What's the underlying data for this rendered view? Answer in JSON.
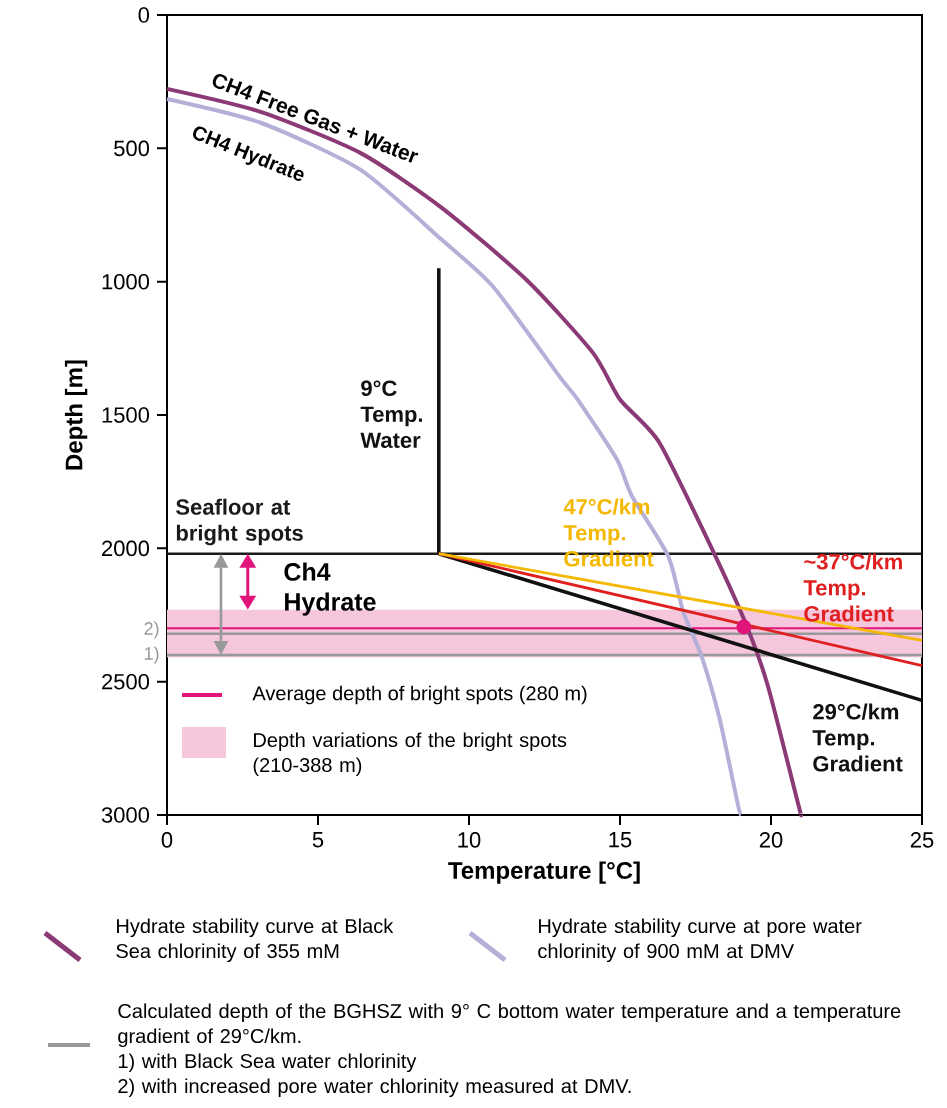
{
  "chart_data": {
    "type": "line",
    "xlabel": "Temperature [°C]",
    "ylabel": "Depth [m]",
    "xlim": [
      0,
      25
    ],
    "ylim": [
      3000,
      0
    ],
    "xticks": [
      0,
      5,
      10,
      15,
      20,
      25
    ],
    "yticks": [
      0,
      500,
      1000,
      1500,
      2000,
      2500,
      3000
    ],
    "series": [
      {
        "name": "Hydrate stability curve at Black Sea chlorinity of 355 mM",
        "color": "#8b3a75",
        "x": [
          0,
          3.1,
          6.4,
          9.1,
          11.9,
          14.1,
          15.0,
          16.3,
          18.1,
          19.2,
          19.9,
          20.9,
          21.0
        ],
        "values": [
          277,
          363,
          517,
          723,
          993,
          1266,
          1442,
          1603,
          2015,
          2292,
          2517,
          2959,
          3000
        ]
      },
      {
        "name": "Hydrate stability curve at pore water chlorinity of 900 mM at DMV",
        "color": "#b4b0d8",
        "x": [
          0,
          3.1,
          6.4,
          9.1,
          10.8,
          13.0,
          13.6,
          14.9,
          15.4,
          16.6,
          17.1,
          17.7,
          18.3,
          18.9,
          19.0
        ],
        "values": [
          315,
          404,
          580,
          843,
          1019,
          1356,
          1442,
          1667,
          1805,
          2030,
          2240,
          2404,
          2640,
          2959,
          3000
        ]
      },
      {
        "name": "9°C Temp. Water",
        "color": "#111111",
        "x": [
          9,
          9
        ],
        "values": [
          950,
          2020
        ]
      },
      {
        "name": "29°C/km Temp. Gradient",
        "color": "#111111",
        "x": [
          9,
          25
        ],
        "values": [
          2020,
          2570
        ]
      },
      {
        "name": "~37°C/km Temp. Gradient",
        "color": "#e02020",
        "x": [
          9,
          25
        ],
        "values": [
          2020,
          2440
        ]
      },
      {
        "name": "47°C/km Temp. Gradient",
        "color": "#f5b800",
        "x": [
          9,
          25
        ],
        "values": [
          2020,
          2345
        ]
      },
      {
        "type": "scatter",
        "marker": "circle",
        "color": "#e0147a",
        "x": [
          19.1
        ],
        "values": [
          2295
        ]
      }
    ],
    "ref_lines": [
      {
        "axis": "y",
        "value": 2020,
        "label": "Seafloor at bright spots",
        "color": "#1a1a1a"
      },
      {
        "axis": "y",
        "value": 2300,
        "label": "Average depth of bright spots (280 m)",
        "color": "#e0147a"
      },
      {
        "axis": "y",
        "value": 2320,
        "color": "#999999"
      },
      {
        "axis": "y",
        "value": 2400,
        "color": "#999999"
      }
    ],
    "bands": [
      {
        "axis": "y",
        "from": 2230,
        "to": 2408,
        "label": "Depth variations of the bright spots (210-388 m)",
        "color": "#f5c6dc"
      }
    ],
    "annotations": [
      "CH4 Free Gas + Water",
      "CH4 Hydrate",
      "Ch4 Hydrate",
      "2)",
      "1)",
      "Calculated depth of the BGHSZ with 9° C bottom water temperature and a temperature gradient of 29°C/km.",
      "1) with Black Sea water chlorinity",
      "2) with increased pore water chlorinity measured at DMV."
    ],
    "legend": "bottom",
    "marker": "none"
  }
}
